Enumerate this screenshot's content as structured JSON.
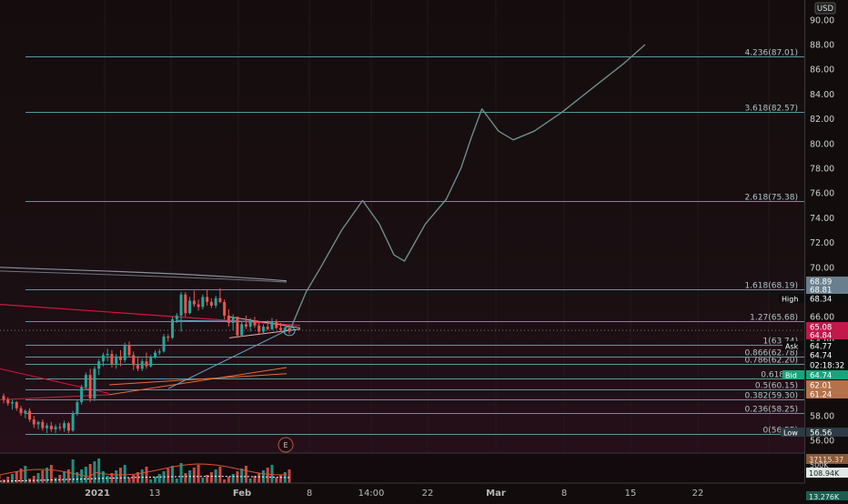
{
  "currency": "USD",
  "axis_ticks": [
    "90.00",
    "88.00",
    "86.00",
    "84.00",
    "82.00",
    "80.00",
    "78.00",
    "76.00",
    "74.00",
    "72.00",
    "70.00",
    "68.00",
    "66.00",
    "64.00",
    "62.00",
    "60.00",
    "58.00",
    "56.00"
  ],
  "x_labels": [
    "2021",
    "13",
    "Feb",
    "8",
    "14:00",
    "22",
    "Mar",
    "8",
    "15",
    "22"
  ],
  "earnings_marker": "E",
  "badges": [
    {
      "label": "",
      "value": "68.89",
      "bg": "#6a7f8e",
      "fg": "#ffffff"
    },
    {
      "label": "",
      "value": "68.81",
      "bg": "#6a7f8e",
      "fg": "#ffffff"
    },
    {
      "label": "High",
      "value": "68.34",
      "bg": "#0d0d0d",
      "fg": "#ffffff"
    },
    {
      "label": "",
      "value": "65.08",
      "bg": "#c2184b",
      "fg": "#ffffff"
    },
    {
      "label": "",
      "value": "64.84",
      "bg": "#c2184b",
      "fg": "#ffffff"
    },
    {
      "label": "Ask",
      "value": "64.77",
      "bg": "#0d0d0d",
      "fg": "#ffffff"
    },
    {
      "label": "",
      "value": "64.74",
      "bg": "#0d0d0d",
      "fg": "#ffffff"
    },
    {
      "label": "",
      "value": "02:18:32",
      "bg": "#0d0d0d",
      "fg": "#ffffff"
    },
    {
      "label": "Bid",
      "value": "64.74",
      "bg": "#14a67d",
      "fg": "#ffffff"
    },
    {
      "label": "",
      "value": "62.01",
      "bg": "#b5714a",
      "fg": "#ffffff"
    },
    {
      "label": "",
      "value": "61.24",
      "bg": "#b5714a",
      "fg": "#ffffff"
    },
    {
      "label": "Low",
      "value": "56.56",
      "bg": "#2e3b44",
      "fg": "#ffffff"
    }
  ],
  "volume_badges": [
    "37115.37",
    "108.94K",
    "13.276K"
  ],
  "volume_scale": "500K",
  "colors": {
    "up": "#26a69a",
    "down": "#ef5350",
    "fib": "#5fa8b0",
    "projection": "#6c8d8c",
    "trend_red": "#d3163e",
    "trend_orange": "#e0703a"
  },
  "chart_data": {
    "type": "candlestick",
    "symbol_currency": "USD",
    "ylim": [
      55.5,
      91.5
    ],
    "fib_levels": [
      {
        "ratio": "0",
        "price": 56.55,
        "label": "0(56.55)"
      },
      {
        "ratio": "0.236",
        "price": 58.25,
        "label": "0.236(58.25)"
      },
      {
        "ratio": "0.382",
        "price": 59.3,
        "label": "0.382(59.30)"
      },
      {
        "ratio": "0.5",
        "price": 60.15,
        "label": "0.5(60.15)"
      },
      {
        "ratio": "0.618",
        "price": 61.0,
        "label": "0.618(61"
      },
      {
        "ratio": "0.786",
        "price": 62.2,
        "label": "0.786(62.20)"
      },
      {
        "ratio": "0.866",
        "price": 62.78,
        "label": "0.866(62.78)"
      },
      {
        "ratio": "1",
        "price": 63.74,
        "label": "1(63.74)"
      },
      {
        "ratio": "1.27",
        "price": 65.68,
        "label": "1.27(65.68)"
      },
      {
        "ratio": "1.618",
        "price": 68.19,
        "label": "1.618(68.19)"
      },
      {
        "ratio": "2.618",
        "price": 75.38,
        "label": "2.618(75.38)"
      },
      {
        "ratio": "3.618",
        "price": 82.57,
        "label": "3.618(82.57)"
      },
      {
        "ratio": "4.236",
        "price": 87.01,
        "label": "4.236(87.01)"
      }
    ],
    "candles": [
      [
        59.6,
        59.8,
        59.0,
        59.3
      ],
      [
        59.3,
        59.5,
        58.8,
        59.0
      ],
      [
        59.0,
        59.3,
        58.5,
        59.1
      ],
      [
        59.1,
        59.2,
        58.4,
        58.6
      ],
      [
        58.6,
        58.8,
        58.0,
        58.2
      ],
      [
        58.2,
        58.5,
        57.8,
        58.4
      ],
      [
        58.4,
        58.6,
        57.5,
        57.7
      ],
      [
        57.7,
        58.0,
        57.0,
        57.3
      ],
      [
        57.3,
        57.6,
        56.9,
        57.5
      ],
      [
        57.5,
        57.7,
        56.8,
        57.0
      ],
      [
        57.0,
        57.4,
        56.6,
        57.2
      ],
      [
        57.2,
        57.5,
        56.7,
        56.9
      ],
      [
        56.9,
        57.3,
        56.6,
        57.1
      ],
      [
        57.1,
        57.4,
        56.8,
        57.0
      ],
      [
        57.0,
        57.6,
        56.7,
        57.4
      ],
      [
        57.4,
        57.5,
        56.6,
        56.8
      ],
      [
        56.8,
        58.4,
        56.7,
        58.2
      ],
      [
        58.2,
        59.3,
        58.0,
        59.1
      ],
      [
        59.1,
        60.5,
        58.9,
        60.3
      ],
      [
        60.3,
        61.5,
        60.1,
        61.3
      ],
      [
        61.3,
        61.8,
        59.1,
        59.4
      ],
      [
        59.4,
        62.0,
        59.2,
        61.8
      ],
      [
        61.8,
        62.6,
        61.3,
        62.4
      ],
      [
        62.4,
        63.1,
        62.0,
        62.9
      ],
      [
        62.9,
        63.4,
        62.4,
        63.0
      ],
      [
        63.0,
        63.3,
        61.9,
        62.2
      ],
      [
        62.2,
        63.0,
        61.8,
        62.8
      ],
      [
        62.8,
        63.3,
        62.0,
        62.5
      ],
      [
        62.5,
        63.9,
        62.3,
        63.7
      ],
      [
        63.7,
        64.0,
        62.7,
        62.9
      ],
      [
        62.9,
        63.2,
        61.7,
        62.1
      ],
      [
        62.1,
        62.8,
        61.6,
        61.8
      ],
      [
        61.8,
        62.6,
        61.6,
        62.4
      ],
      [
        62.4,
        63.1,
        61.8,
        62.0
      ],
      [
        62.0,
        62.9,
        61.9,
        62.7
      ],
      [
        62.7,
        63.3,
        62.6,
        63.1
      ],
      [
        63.1,
        63.4,
        62.9,
        63.2
      ],
      [
        63.2,
        64.6,
        63.1,
        64.4
      ],
      [
        64.4,
        64.6,
        64.0,
        64.3
      ],
      [
        64.3,
        66.0,
        64.2,
        65.8
      ],
      [
        65.8,
        66.3,
        65.5,
        66.1
      ],
      [
        66.1,
        68.0,
        64.8,
        67.8
      ],
      [
        67.8,
        68.0,
        66.0,
        66.3
      ],
      [
        66.3,
        67.6,
        66.2,
        67.3
      ],
      [
        67.3,
        68.1,
        66.8,
        67.0
      ],
      [
        67.0,
        67.4,
        66.5,
        66.8
      ],
      [
        66.8,
        67.8,
        66.6,
        67.6
      ],
      [
        67.6,
        68.2,
        66.9,
        67.2
      ],
      [
        67.2,
        67.5,
        66.7,
        66.9
      ],
      [
        66.9,
        67.7,
        66.7,
        67.5
      ],
      [
        67.5,
        68.3,
        67.1,
        67.2
      ],
      [
        67.2,
        67.4,
        65.8,
        66.1
      ],
      [
        66.1,
        66.6,
        65.2,
        65.5
      ],
      [
        65.5,
        66.2,
        64.9,
        66.0
      ],
      [
        66.0,
        66.0,
        64.3,
        64.5
      ],
      [
        64.5,
        65.7,
        64.4,
        65.4
      ],
      [
        65.4,
        66.1,
        65.0,
        65.2
      ],
      [
        65.2,
        65.9,
        64.8,
        65.7
      ],
      [
        65.7,
        66.0,
        65.1,
        65.3
      ],
      [
        65.3,
        65.6,
        64.6,
        64.8
      ],
      [
        64.8,
        65.4,
        64.6,
        65.2
      ],
      [
        65.2,
        65.7,
        64.9,
        65.0
      ],
      [
        65.0,
        65.9,
        64.9,
        65.6
      ],
      [
        65.6,
        65.8,
        65.0,
        65.1
      ],
      [
        65.1,
        65.5,
        64.8,
        64.9
      ],
      [
        64.9,
        65.3,
        64.7,
        65.1
      ],
      [
        65.1,
        65.4,
        64.6,
        64.8
      ]
    ],
    "projection_path": [
      [
        64.8,
        0
      ],
      [
        66.0,
        3
      ],
      [
        68.0,
        8
      ],
      [
        70.0,
        15
      ],
      [
        73.0,
        25
      ],
      [
        75.4,
        35
      ],
      [
        73.5,
        43
      ],
      [
        71.0,
        50
      ],
      [
        70.5,
        55
      ],
      [
        73.5,
        65
      ],
      [
        75.5,
        75
      ],
      [
        78.0,
        82
      ],
      [
        80.5,
        87
      ],
      [
        82.8,
        92
      ],
      [
        81.0,
        100
      ],
      [
        80.3,
        107
      ],
      [
        81.0,
        117
      ],
      [
        82.5,
        130
      ],
      [
        84.5,
        145
      ],
      [
        86.5,
        160
      ],
      [
        88.0,
        170
      ]
    ]
  }
}
